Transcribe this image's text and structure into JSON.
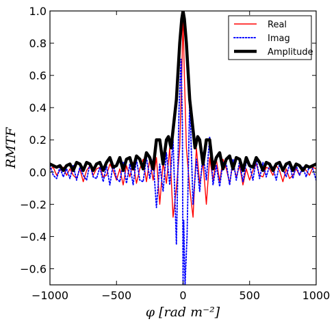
{
  "chart_data": {
    "type": "line",
    "xlabel": "φ  [rad m⁻²]",
    "ylabel": "RMTF",
    "xlim": [
      -1000,
      1000
    ],
    "ylim": [
      -0.7,
      1.0
    ],
    "xticks": [
      "−1000",
      "−500",
      "0",
      "500",
      "1000"
    ],
    "xtick_values": [
      -1000,
      -500,
      0,
      500,
      1000
    ],
    "yticks": [
      "−0.6",
      "−0.4",
      "−0.2",
      "0.0",
      "0.2",
      "0.4",
      "0.6",
      "0.8",
      "1.0"
    ],
    "ytick_values": [
      -0.6,
      -0.4,
      -0.2,
      0.0,
      0.2,
      0.4,
      0.6,
      0.8,
      1.0
    ],
    "grid": false,
    "legend_position": "top-right",
    "series": [
      {
        "name": "Real",
        "color": "#ff0000",
        "style": "solid",
        "points": [
          [
            -1000,
            0.02
          ],
          [
            -975,
            0.03
          ],
          [
            -950,
            -0.02
          ],
          [
            -925,
            0.01
          ],
          [
            -900,
            0.03
          ],
          [
            -875,
            -0.02
          ],
          [
            -850,
            0.02
          ],
          [
            -825,
            -0.02
          ],
          [
            -800,
            -0.04
          ],
          [
            -775,
            0.02
          ],
          [
            -750,
            -0.06
          ],
          [
            -725,
            0.01
          ],
          [
            -700,
            0.04
          ],
          [
            -675,
            -0.02
          ],
          [
            -650,
            0.02
          ],
          [
            -625,
            0.03
          ],
          [
            -600,
            -0.03
          ],
          [
            -575,
            -0.02
          ],
          [
            -550,
            0.05
          ],
          [
            -525,
            0.01
          ],
          [
            -500,
            -0.05
          ],
          [
            -475,
            0.02
          ],
          [
            -450,
            -0.08
          ],
          [
            -425,
            0.04
          ],
          [
            -400,
            -0.03
          ],
          [
            -375,
            0.06
          ],
          [
            -350,
            -0.07
          ],
          [
            -325,
            0.02
          ],
          [
            -300,
            0.08
          ],
          [
            -275,
            -0.06
          ],
          [
            -250,
            0.08
          ],
          [
            -225,
            -0.05
          ],
          [
            -200,
            0.09
          ],
          [
            -175,
            -0.2
          ],
          [
            -150,
            0.06
          ],
          [
            -125,
            -0.07
          ],
          [
            -100,
            0.15
          ],
          [
            -75,
            -0.28
          ],
          [
            -50,
            -0.1
          ],
          [
            -25,
            0.15
          ],
          [
            -10,
            0.6
          ],
          [
            0,
            0.95
          ],
          [
            10,
            0.6
          ],
          [
            25,
            0.15
          ],
          [
            50,
            -0.1
          ],
          [
            75,
            -0.28
          ],
          [
            100,
            0.15
          ],
          [
            125,
            -0.07
          ],
          [
            150,
            0.06
          ],
          [
            175,
            -0.2
          ],
          [
            200,
            0.09
          ],
          [
            225,
            -0.05
          ],
          [
            250,
            0.08
          ],
          [
            275,
            -0.06
          ],
          [
            300,
            0.08
          ],
          [
            325,
            0.02
          ],
          [
            350,
            -0.07
          ],
          [
            375,
            0.06
          ],
          [
            400,
            -0.03
          ],
          [
            425,
            0.04
          ],
          [
            450,
            -0.08
          ],
          [
            475,
            0.02
          ],
          [
            500,
            -0.05
          ],
          [
            525,
            0.01
          ],
          [
            550,
            0.05
          ],
          [
            575,
            -0.02
          ],
          [
            600,
            -0.03
          ],
          [
            625,
            0.03
          ],
          [
            650,
            0.02
          ],
          [
            675,
            -0.02
          ],
          [
            700,
            0.04
          ],
          [
            725,
            0.01
          ],
          [
            750,
            -0.06
          ],
          [
            775,
            0.02
          ],
          [
            800,
            -0.04
          ],
          [
            825,
            -0.02
          ],
          [
            850,
            0.02
          ],
          [
            875,
            -0.02
          ],
          [
            900,
            0.03
          ],
          [
            925,
            0.01
          ],
          [
            950,
            -0.02
          ],
          [
            975,
            0.03
          ],
          [
            1000,
            0.02
          ]
        ]
      },
      {
        "name": "Imag",
        "color": "#0000ff",
        "style": "dotted",
        "points": [
          [
            -1000,
            0.04
          ],
          [
            -975,
            -0.02
          ],
          [
            -950,
            -0.04
          ],
          [
            -925,
            0.03
          ],
          [
            -900,
            -0.03
          ],
          [
            -875,
            0.02
          ],
          [
            -850,
            -0.04
          ],
          [
            -825,
            0.04
          ],
          [
            -800,
            -0.05
          ],
          [
            -775,
            0.03
          ],
          [
            -750,
            -0.02
          ],
          [
            -725,
            -0.05
          ],
          [
            -700,
            0.05
          ],
          [
            -675,
            -0.03
          ],
          [
            -650,
            -0.04
          ],
          [
            -625,
            0.03
          ],
          [
            -600,
            -0.06
          ],
          [
            -575,
            0.04
          ],
          [
            -550,
            -0.08
          ],
          [
            -525,
            0.05
          ],
          [
            -500,
            -0.04
          ],
          [
            -475,
            -0.06
          ],
          [
            -450,
            0.06
          ],
          [
            -425,
            -0.07
          ],
          [
            -400,
            0.05
          ],
          [
            -375,
            -0.08
          ],
          [
            -350,
            0.08
          ],
          [
            -325,
            -0.05
          ],
          [
            -300,
            -0.06
          ],
          [
            -275,
            0.09
          ],
          [
            -250,
            -0.04
          ],
          [
            -225,
            0.08
          ],
          [
            -200,
            -0.22
          ],
          [
            -175,
            0.05
          ],
          [
            -150,
            -0.12
          ],
          [
            -125,
            0.12
          ],
          [
            -100,
            -0.08
          ],
          [
            -75,
            0.2
          ],
          [
            -50,
            -0.45
          ],
          [
            -30,
            0.4
          ],
          [
            -15,
            0.7
          ],
          [
            -5,
            0.3
          ],
          [
            0,
            -0.7
          ],
          [
            5,
            -0.3
          ],
          [
            15,
            -0.7
          ],
          [
            30,
            -0.4
          ],
          [
            50,
            0.45
          ],
          [
            75,
            -0.2
          ],
          [
            100,
            0.08
          ],
          [
            125,
            -0.12
          ],
          [
            150,
            0.12
          ],
          [
            175,
            -0.05
          ],
          [
            200,
            0.22
          ],
          [
            225,
            -0.08
          ],
          [
            250,
            0.04
          ],
          [
            275,
            -0.09
          ],
          [
            300,
            0.06
          ],
          [
            325,
            0.05
          ],
          [
            350,
            -0.08
          ],
          [
            375,
            0.08
          ],
          [
            400,
            -0.05
          ],
          [
            425,
            0.07
          ],
          [
            450,
            -0.06
          ],
          [
            475,
            0.06
          ],
          [
            500,
            0.04
          ],
          [
            525,
            -0.05
          ],
          [
            550,
            0.08
          ],
          [
            575,
            -0.04
          ],
          [
            600,
            0.06
          ],
          [
            625,
            -0.03
          ],
          [
            650,
            0.04
          ],
          [
            675,
            0.03
          ],
          [
            700,
            -0.05
          ],
          [
            725,
            0.05
          ],
          [
            750,
            0.02
          ],
          [
            775,
            -0.03
          ],
          [
            800,
            0.05
          ],
          [
            825,
            -0.04
          ],
          [
            850,
            0.04
          ],
          [
            875,
            -0.02
          ],
          [
            900,
            0.03
          ],
          [
            925,
            -0.03
          ],
          [
            950,
            0.04
          ],
          [
            975,
            0.02
          ],
          [
            1000,
            -0.05
          ]
        ]
      },
      {
        "name": "Amplitude",
        "color": "#000000",
        "style": "thick",
        "points": [
          [
            -1000,
            0.05
          ],
          [
            -975,
            0.04
          ],
          [
            -950,
            0.03
          ],
          [
            -925,
            0.04
          ],
          [
            -900,
            0.01
          ],
          [
            -875,
            0.04
          ],
          [
            -850,
            0.05
          ],
          [
            -825,
            0.01
          ],
          [
            -800,
            0.06
          ],
          [
            -775,
            0.05
          ],
          [
            -750,
            0.01
          ],
          [
            -725,
            0.06
          ],
          [
            -700,
            0.05
          ],
          [
            -675,
            0.01
          ],
          [
            -650,
            0.05
          ],
          [
            -625,
            0.06
          ],
          [
            -600,
            0.01
          ],
          [
            -575,
            0.06
          ],
          [
            -550,
            0.09
          ],
          [
            -525,
            0.03
          ],
          [
            -500,
            0.04
          ],
          [
            -475,
            0.09
          ],
          [
            -450,
            0.01
          ],
          [
            -425,
            0.08
          ],
          [
            -400,
            0.09
          ],
          [
            -375,
            0.02
          ],
          [
            -350,
            0.1
          ],
          [
            -325,
            0.08
          ],
          [
            -300,
            0.02
          ],
          [
            -275,
            0.12
          ],
          [
            -250,
            0.09
          ],
          [
            -225,
            0.02
          ],
          [
            -200,
            0.2
          ],
          [
            -175,
            0.2
          ],
          [
            -150,
            0.05
          ],
          [
            -125,
            0.2
          ],
          [
            -110,
            0.22
          ],
          [
            -90,
            0.15
          ],
          [
            -70,
            0.3
          ],
          [
            -50,
            0.45
          ],
          [
            -25,
            0.8
          ],
          [
            -10,
            0.95
          ],
          [
            0,
            1.0
          ],
          [
            10,
            0.95
          ],
          [
            25,
            0.8
          ],
          [
            50,
            0.45
          ],
          [
            70,
            0.3
          ],
          [
            90,
            0.15
          ],
          [
            110,
            0.22
          ],
          [
            125,
            0.2
          ],
          [
            150,
            0.05
          ],
          [
            175,
            0.2
          ],
          [
            200,
            0.2
          ],
          [
            225,
            0.02
          ],
          [
            250,
            0.09
          ],
          [
            275,
            0.12
          ],
          [
            300,
            0.02
          ],
          [
            325,
            0.08
          ],
          [
            350,
            0.1
          ],
          [
            375,
            0.02
          ],
          [
            400,
            0.09
          ],
          [
            425,
            0.08
          ],
          [
            450,
            0.01
          ],
          [
            475,
            0.09
          ],
          [
            500,
            0.04
          ],
          [
            525,
            0.03
          ],
          [
            550,
            0.09
          ],
          [
            575,
            0.06
          ],
          [
            600,
            0.01
          ],
          [
            625,
            0.06
          ],
          [
            650,
            0.05
          ],
          [
            675,
            0.01
          ],
          [
            700,
            0.05
          ],
          [
            725,
            0.06
          ],
          [
            750,
            0.01
          ],
          [
            775,
            0.05
          ],
          [
            800,
            0.06
          ],
          [
            825,
            0.01
          ],
          [
            850,
            0.05
          ],
          [
            875,
            0.04
          ],
          [
            900,
            0.01
          ],
          [
            925,
            0.04
          ],
          [
            950,
            0.03
          ],
          [
            975,
            0.04
          ],
          [
            1000,
            0.05
          ]
        ]
      }
    ]
  }
}
